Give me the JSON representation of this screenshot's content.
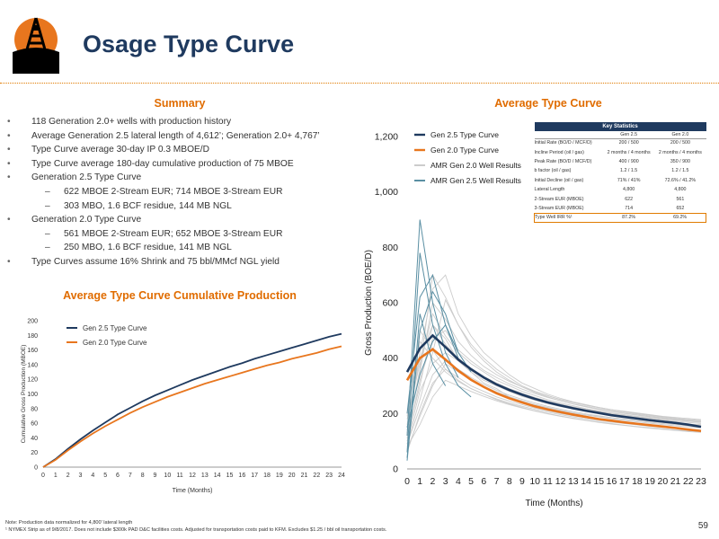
{
  "page": {
    "title": "Osage Type Curve",
    "page_number": "59",
    "footnotes": [
      "Note: Production data normalized for 4,800' lateral length",
      "¹ NYMEX Strip as of 9/8/2017. Does not include $300k PAD D&C facilities costs. Adjusted for transportation costs paid to KFM. Excludes $1.25 / bbl oil transportation costs."
    ]
  },
  "summary": {
    "title": "Summary",
    "items": [
      {
        "level": 1,
        "text": "118 Generation 2.0+ wells with production history"
      },
      {
        "level": 1,
        "text": "Average Generation 2.5 lateral length of 4,612’; Generation 2.0+ 4,767’"
      },
      {
        "level": 1,
        "text": "Type Curve average 30-day IP 0.3 MBOE/D"
      },
      {
        "level": 1,
        "text": "Type Curve average 180-day cumulative production of 75 MBOE"
      },
      {
        "level": 1,
        "text": "Generation 2.5 Type Curve"
      },
      {
        "level": 2,
        "text": "622 MBOE 2-Stream EUR; 714 MBOE 3-Stream EUR"
      },
      {
        "level": 2,
        "text": "303 MBO, 1.6 BCF residue, 144 MB NGL"
      },
      {
        "level": 1,
        "text": "Generation 2.0 Type Curve"
      },
      {
        "level": 2,
        "text": "561 MBOE 2-Stream EUR; 652 MBOE 3-Stream EUR"
      },
      {
        "level": 2,
        "text": "250 MBO, 1.6 BCF residue, 141 MB NGL"
      },
      {
        "level": 1,
        "text": "Type Curves assume 16% Shrink and 75 bbl/MMcf NGL yield"
      }
    ]
  },
  "key_statistics": {
    "title": "Key Statistics",
    "columns": [
      "",
      "Gen 2.5",
      "Gen 2.0"
    ],
    "rows": [
      [
        "Initial Rate (BO/D / MCF/D)",
        "200 / 500",
        "200 / 500"
      ],
      [
        "Incline Period (oil / gas)",
        "2 months / 4 months",
        "2 months / 4 months"
      ],
      [
        "Peak Rate (BO/D / MCF/D)",
        "400 / 900",
        "350 / 900"
      ],
      [
        "b factor (oil / gas)",
        "1.2 / 1.5",
        "1.2 / 1.5"
      ],
      [
        "Initial Decline (oil / gas)",
        "71% / 41%",
        "72.6% / 41.2%"
      ],
      [
        "Lateral Length",
        "4,800",
        "4,800"
      ],
      [
        "2-Stream EUR (MBOE)",
        "622",
        "561"
      ],
      [
        "3-Stream EUR (MBOE)",
        "714",
        "652"
      ]
    ],
    "irr_row": [
      "Type Well IRR %¹",
      "87.2%",
      "69.2%"
    ]
  },
  "colors": {
    "title": "#1f3a5f",
    "accent": "#e06c00",
    "gen25": "#1f3a5f",
    "gen20": "#e8761e",
    "amr20": "#cccccc",
    "amr25": "#5a8fa3"
  },
  "chart_data": [
    {
      "type": "line",
      "title": "Average Type Curve",
      "xlabel": "Time (Months)",
      "ylabel": "Gross Production (BOE/D)",
      "x": [
        0,
        1,
        2,
        3,
        4,
        5,
        6,
        7,
        8,
        9,
        10,
        11,
        12,
        13,
        14,
        15,
        16,
        17,
        18,
        19,
        20,
        21,
        22,
        23
      ],
      "xlim": [
        0,
        23
      ],
      "ylim": [
        0,
        1200
      ],
      "yticks": [
        "0",
        "200",
        "400",
        "600",
        "800",
        "1,000",
        "1,200"
      ],
      "legend": "top-left",
      "series": [
        {
          "name": "Gen 2.5 Type Curve",
          "values": [
            350,
            435,
            482,
            440,
            395,
            360,
            330,
            305,
            285,
            268,
            253,
            240,
            229,
            219,
            210,
            202,
            194,
            188,
            182,
            176,
            171,
            166,
            160,
            152
          ]
        },
        {
          "name": "Gen 2.0 Type Curve",
          "values": [
            320,
            400,
            432,
            395,
            355,
            322,
            296,
            273,
            255,
            240,
            226,
            215,
            205,
            196,
            188,
            180,
            174,
            168,
            163,
            158,
            153,
            148,
            142,
            137
          ]
        },
        {
          "name": "AMR Gen 2.0 Well Results",
          "values": [
            [
              120,
              300,
              520,
              470,
              390,
              350,
              310,
              290,
              260,
              240,
              230,
              220,
              210,
              200,
              195,
              190,
              185,
              180,
              176,
              172,
              168,
              165,
              162,
              160
            ],
            [
              90,
              250,
              420,
              610,
              520,
              450,
              400,
              360,
              330,
              300,
              280,
              265,
              250,
              240,
              230,
              222,
              214,
              208,
              202,
              196,
              190,
              186,
              182,
              178
            ],
            [
              180,
              380,
              560,
              480,
              420,
              380,
              350,
              320,
              300,
              280,
              265,
              250,
              238,
              228,
              218,
              210,
              202,
              196,
              190,
              185,
              180,
              176,
              172,
              168
            ],
            [
              60,
              200,
              310,
              360,
              330,
              300,
              280,
              260,
              245,
              232,
              220,
              210,
              200,
              192,
              185,
              178,
              172,
              166,
              161,
              156,
              152,
              148,
              144,
              140
            ],
            [
              150,
              420,
              650,
              700,
              560,
              480,
              420,
              380,
              340,
              310,
              290,
              270,
              255,
              242,
              232,
              222,
              214,
              206,
              200,
              194,
              188,
              183,
              178,
              174
            ],
            [
              100,
              280,
              380,
              420,
              390,
              350,
              320,
              300,
              280,
              262,
              248,
              236,
              225,
              216,
              208,
              200,
              193,
              187,
              181,
              176,
              171,
              166,
              162,
              158
            ],
            [
              200,
              500,
              430,
              360,
              320,
              290,
              270,
              250,
              235,
              222,
              210,
              200,
              191,
              183,
              176,
              170,
              164,
              158,
              153,
              149,
              145,
              141,
              138,
              135
            ],
            [
              80,
              160,
              260,
              320,
              300,
              280,
              262,
              246,
              232,
              220,
              209,
              199,
              190,
              182,
              175,
              168,
              162,
              157,
              152,
              147,
              143,
              139,
              135,
              132
            ],
            [
              140,
              350,
              600,
              540,
              460,
              410,
              370,
              340,
              316,
              296,
              279,
              264,
              251,
              240,
              230,
              221,
              213,
              206,
              199,
              193,
              188,
              183,
              178,
              174
            ],
            [
              110,
              320,
              470,
              500,
              430,
              390,
              356,
              330,
              307,
              288,
              272,
              258,
              246,
              235,
              226,
              217,
              209,
              202,
              196,
              190,
              185,
              180,
              175,
              171
            ],
            [
              70,
              190,
              300,
              380,
              350,
              322,
              298,
              278,
              261,
              246,
              233,
              222,
              212,
              203,
              195,
              188,
              181,
              175,
              170,
              165,
              160,
              156,
              152,
              149
            ],
            [
              160,
              400,
              520,
              450,
              400,
              362,
              334,
              310,
              290,
              273,
              258,
              245,
              234,
              224,
              215,
              207,
              200,
              193,
              187,
              182,
              177,
              172,
              168,
              164
            ],
            [
              130,
              360,
              700,
              620,
              520,
              440,
              390,
              350,
              320,
              296,
              276,
              260,
              246,
              234,
              224,
              215,
              207,
              200,
              194,
              188,
              183,
              178,
              173,
              169
            ],
            [
              90,
              220,
              340,
              390,
              360,
              330,
              305,
              284,
              266,
              251,
              238,
              226,
              216,
              207,
              199,
              192,
              185,
              179,
              174,
              169,
              164,
              160,
              156,
              152
            ],
            [
              190,
              460,
              400,
              350,
              316,
              290,
              270,
              253,
              238,
              226,
              215,
              205,
              196,
              188,
              181,
              175,
              169,
              164,
              159,
              154,
              150,
              146,
              142,
              139
            ]
          ]
        },
        {
          "name": "AMR Gen 2.5 Well Results",
          "values": [
            [
              40,
              560,
              380,
              300
            ],
            [
              120,
              900,
              600,
              420,
              330
            ],
            [
              60,
              780,
              520,
              380,
              300,
              260
            ],
            [
              200,
              620,
              700,
              520,
              420
            ],
            [
              30,
              500,
              640,
              560,
              420,
              350
            ],
            [
              150,
              340,
              460,
              520,
              400
            ]
          ]
        }
      ]
    },
    {
      "type": "line",
      "title": "Average Type Curve Cumulative Production",
      "xlabel": "Time (Months)",
      "ylabel": "Cumulative Gross Production (MBOE)",
      "x": [
        0,
        1,
        2,
        3,
        4,
        5,
        6,
        7,
        8,
        9,
        10,
        11,
        12,
        13,
        14,
        15,
        16,
        17,
        18,
        19,
        20,
        21,
        22,
        23,
        24
      ],
      "xlim": [
        0,
        24
      ],
      "ylim": [
        0,
        200
      ],
      "legend": "top-left",
      "series": [
        {
          "name": "Gen 2.5 Type Curve",
          "values": [
            0,
            11,
            25,
            38,
            50,
            61,
            72,
            81,
            90,
            98,
            105,
            112,
            119,
            125,
            131,
            137,
            142,
            148,
            153,
            158,
            163,
            168,
            173,
            178,
            182
          ]
        },
        {
          "name": "Gen 2.0 Type Curve",
          "values": [
            0,
            10,
            23,
            35,
            46,
            56,
            65,
            74,
            82,
            89,
            96,
            102,
            108,
            114,
            119,
            124,
            129,
            134,
            139,
            143,
            148,
            152,
            156,
            161,
            165
          ]
        }
      ]
    }
  ]
}
